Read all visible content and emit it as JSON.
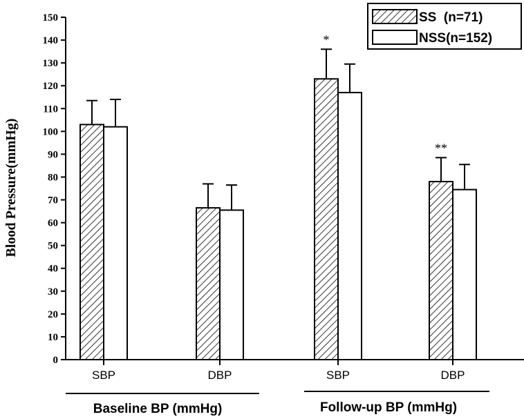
{
  "chart_data": {
    "type": "bar",
    "ylabel": "Blood Pressure(mmHg)",
    "ylim": [
      0,
      150
    ],
    "yticks": [
      0,
      10,
      20,
      30,
      40,
      50,
      60,
      70,
      80,
      90,
      100,
      110,
      120,
      130,
      140,
      150
    ],
    "legend_position": "top-right",
    "groups": [
      {
        "label": "Baseline BP (mmHg)",
        "categories": [
          "SBP",
          "DBP"
        ]
      },
      {
        "label": "Follow-up BP (mmHg)",
        "categories": [
          "SBP",
          "DBP"
        ]
      }
    ],
    "categories": [
      "SBP",
      "DBP",
      "SBP",
      "DBP"
    ],
    "series": [
      {
        "name": "SS  (n=71)",
        "pattern": "hatched",
        "values": [
          103,
          66.5,
          123,
          78
        ],
        "errors": [
          10.5,
          10.5,
          13,
          10.5
        ]
      },
      {
        "name": "NSS(n=152)",
        "pattern": "open",
        "values": [
          102,
          65.5,
          117,
          74.5
        ],
        "errors": [
          12,
          11,
          12.5,
          11
        ]
      }
    ],
    "annotations": [
      {
        "text": "*",
        "category_index": 2,
        "series_index": 0
      },
      {
        "text": "**",
        "category_index": 3,
        "series_index": 0
      }
    ]
  }
}
